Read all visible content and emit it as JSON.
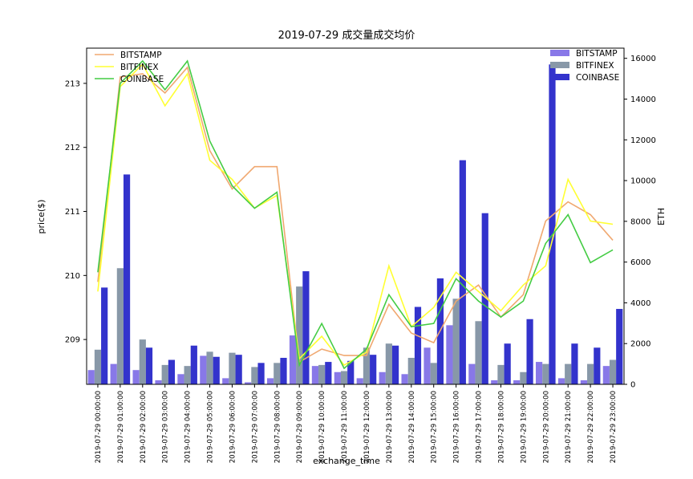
{
  "chart_data": {
    "type": "bar+line",
    "title": "2019-07-29 成交量成交均价",
    "xlabel": "exchange_time",
    "ylabel_left": "price($)",
    "ylabel_right": "ETH",
    "ylim_left": [
      208.3,
      213.55
    ],
    "ylim_right": [
      0,
      16500
    ],
    "yticks_left": [
      209,
      210,
      211,
      212,
      213
    ],
    "yticks_right": [
      0,
      2000,
      4000,
      6000,
      8000,
      10000,
      12000,
      14000,
      16000
    ],
    "legend_lines_position": "top-left",
    "legend_bars_position": "top-right",
    "categories": [
      "2019-07-29 00:00:00",
      "2019-07-29 01:00:00",
      "2019-07-29 02:00:00",
      "2019-07-29 03:00:00",
      "2019-07-29 04:00:00",
      "2019-07-29 05:00:00",
      "2019-07-29 06:00:00",
      "2019-07-29 07:00:00",
      "2019-07-29 08:00:00",
      "2019-07-29 09:00:00",
      "2019-07-29 10:00:00",
      "2019-07-29 11:00:00",
      "2019-07-29 12:00:00",
      "2019-07-29 13:00:00",
      "2019-07-29 14:00:00",
      "2019-07-29 15:00:00",
      "2019-07-29 16:00:00",
      "2019-07-29 17:00:00",
      "2019-07-29 18:00:00",
      "2019-07-29 19:00:00",
      "2019-07-29 20:00:00",
      "2019-07-29 21:00:00",
      "2019-07-29 22:00:00",
      "2019-07-29 23:00:00"
    ],
    "price_series": [
      {
        "name": "BITSTAMP",
        "color": "#f0a870",
        "values": [
          209.9,
          213.1,
          213.15,
          212.85,
          213.25,
          211.95,
          211.35,
          211.7,
          211.7,
          208.65,
          208.85,
          208.75,
          208.75,
          209.55,
          209.1,
          208.95,
          209.6,
          209.85,
          209.35,
          209.7,
          210.85,
          211.15,
          210.95,
          210.55
        ]
      },
      {
        "name": "BITFINEX",
        "color": "#ffff33",
        "values": [
          209.75,
          212.95,
          213.3,
          212.65,
          213.15,
          211.8,
          211.5,
          211.05,
          211.25,
          208.7,
          209.05,
          208.6,
          208.8,
          210.15,
          209.2,
          209.5,
          210.05,
          209.75,
          209.45,
          209.85,
          210.15,
          211.5,
          210.85,
          210.8
        ]
      },
      {
        "name": "COINBASE",
        "color": "#44cc44",
        "values": [
          210.05,
          213.0,
          213.35,
          212.9,
          213.35,
          212.1,
          211.4,
          211.05,
          211.3,
          208.6,
          209.25,
          208.55,
          208.85,
          209.7,
          209.2,
          209.25,
          209.95,
          209.6,
          209.35,
          209.6,
          210.5,
          210.95,
          210.2,
          210.4
        ]
      }
    ],
    "volume_series": [
      {
        "name": "BITSTAMP",
        "color": "#8878e8",
        "values": [
          700,
          1000,
          700,
          200,
          500,
          1400,
          300,
          100,
          300,
          2400,
          900,
          600,
          300,
          600,
          500,
          1800,
          2900,
          1000,
          200,
          200,
          1100,
          300,
          200,
          900
        ]
      },
      {
        "name": "BITFINEX",
        "color": "#8898a8",
        "values": [
          1700,
          5700,
          2200,
          950,
          900,
          1600,
          1550,
          850,
          1050,
          4800,
          950,
          650,
          1800,
          2000,
          1300,
          1050,
          4200,
          3100,
          950,
          600,
          1000,
          1000,
          1000,
          1200
        ]
      },
      {
        "name": "COINBASE",
        "color": "#3333cc",
        "values": [
          4750,
          10300,
          1800,
          1200,
          1900,
          1350,
          1450,
          1050,
          1300,
          5550,
          1100,
          1150,
          1450,
          1900,
          3800,
          5200,
          11000,
          8400,
          2000,
          3200,
          15700,
          2000,
          1800,
          3700
        ]
      }
    ]
  }
}
